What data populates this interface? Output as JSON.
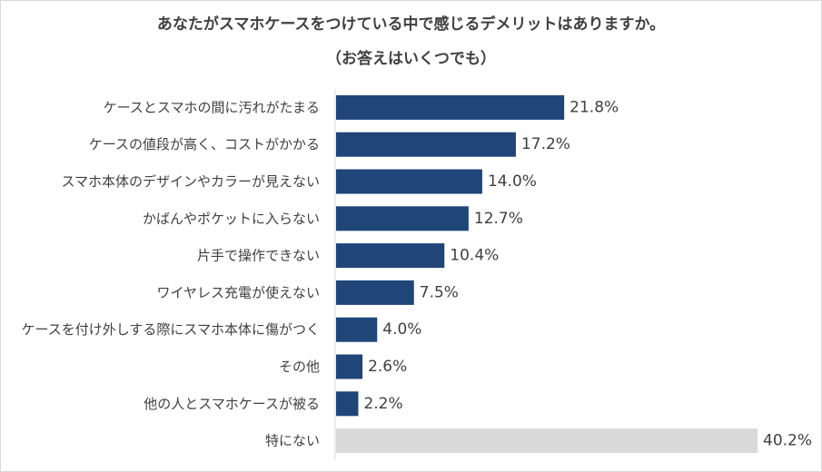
{
  "chart_data": {
    "type": "bar",
    "orientation": "horizontal",
    "title": "あなたがスマホケースをつけている中で感じるデメリットはありますか。",
    "subtitle": "（お答えはいくつでも）",
    "categories": [
      "ケースとスマホの間に汚れがたまる",
      "ケースの値段が高く、コストがかかる",
      "スマホ本体のデザインやカラーが見えない",
      "かばんやポケットに入らない",
      "片手で操作できない",
      "ワイヤレス充電が使えない",
      "ケースを付け外しする際にスマホ本体に傷がつく",
      "その他",
      "他の人とスマホケースが被る",
      "特にない"
    ],
    "values": [
      21.8,
      17.2,
      14.0,
      12.7,
      10.4,
      7.5,
      4.0,
      2.6,
      2.2,
      40.2
    ],
    "value_labels": [
      "21.8%",
      "17.2%",
      "14.0%",
      "12.7%",
      "10.4%",
      "7.5%",
      "4.0%",
      "2.6%",
      "2.2%",
      "40.2%"
    ],
    "xlim": [
      0,
      40.2
    ],
    "grid": false,
    "legend": "none",
    "colors": {
      "bar": "#1f4579",
      "highlight_bar": "#d9d9d9",
      "axis": "#d9d9d9",
      "text": "#404040"
    }
  }
}
